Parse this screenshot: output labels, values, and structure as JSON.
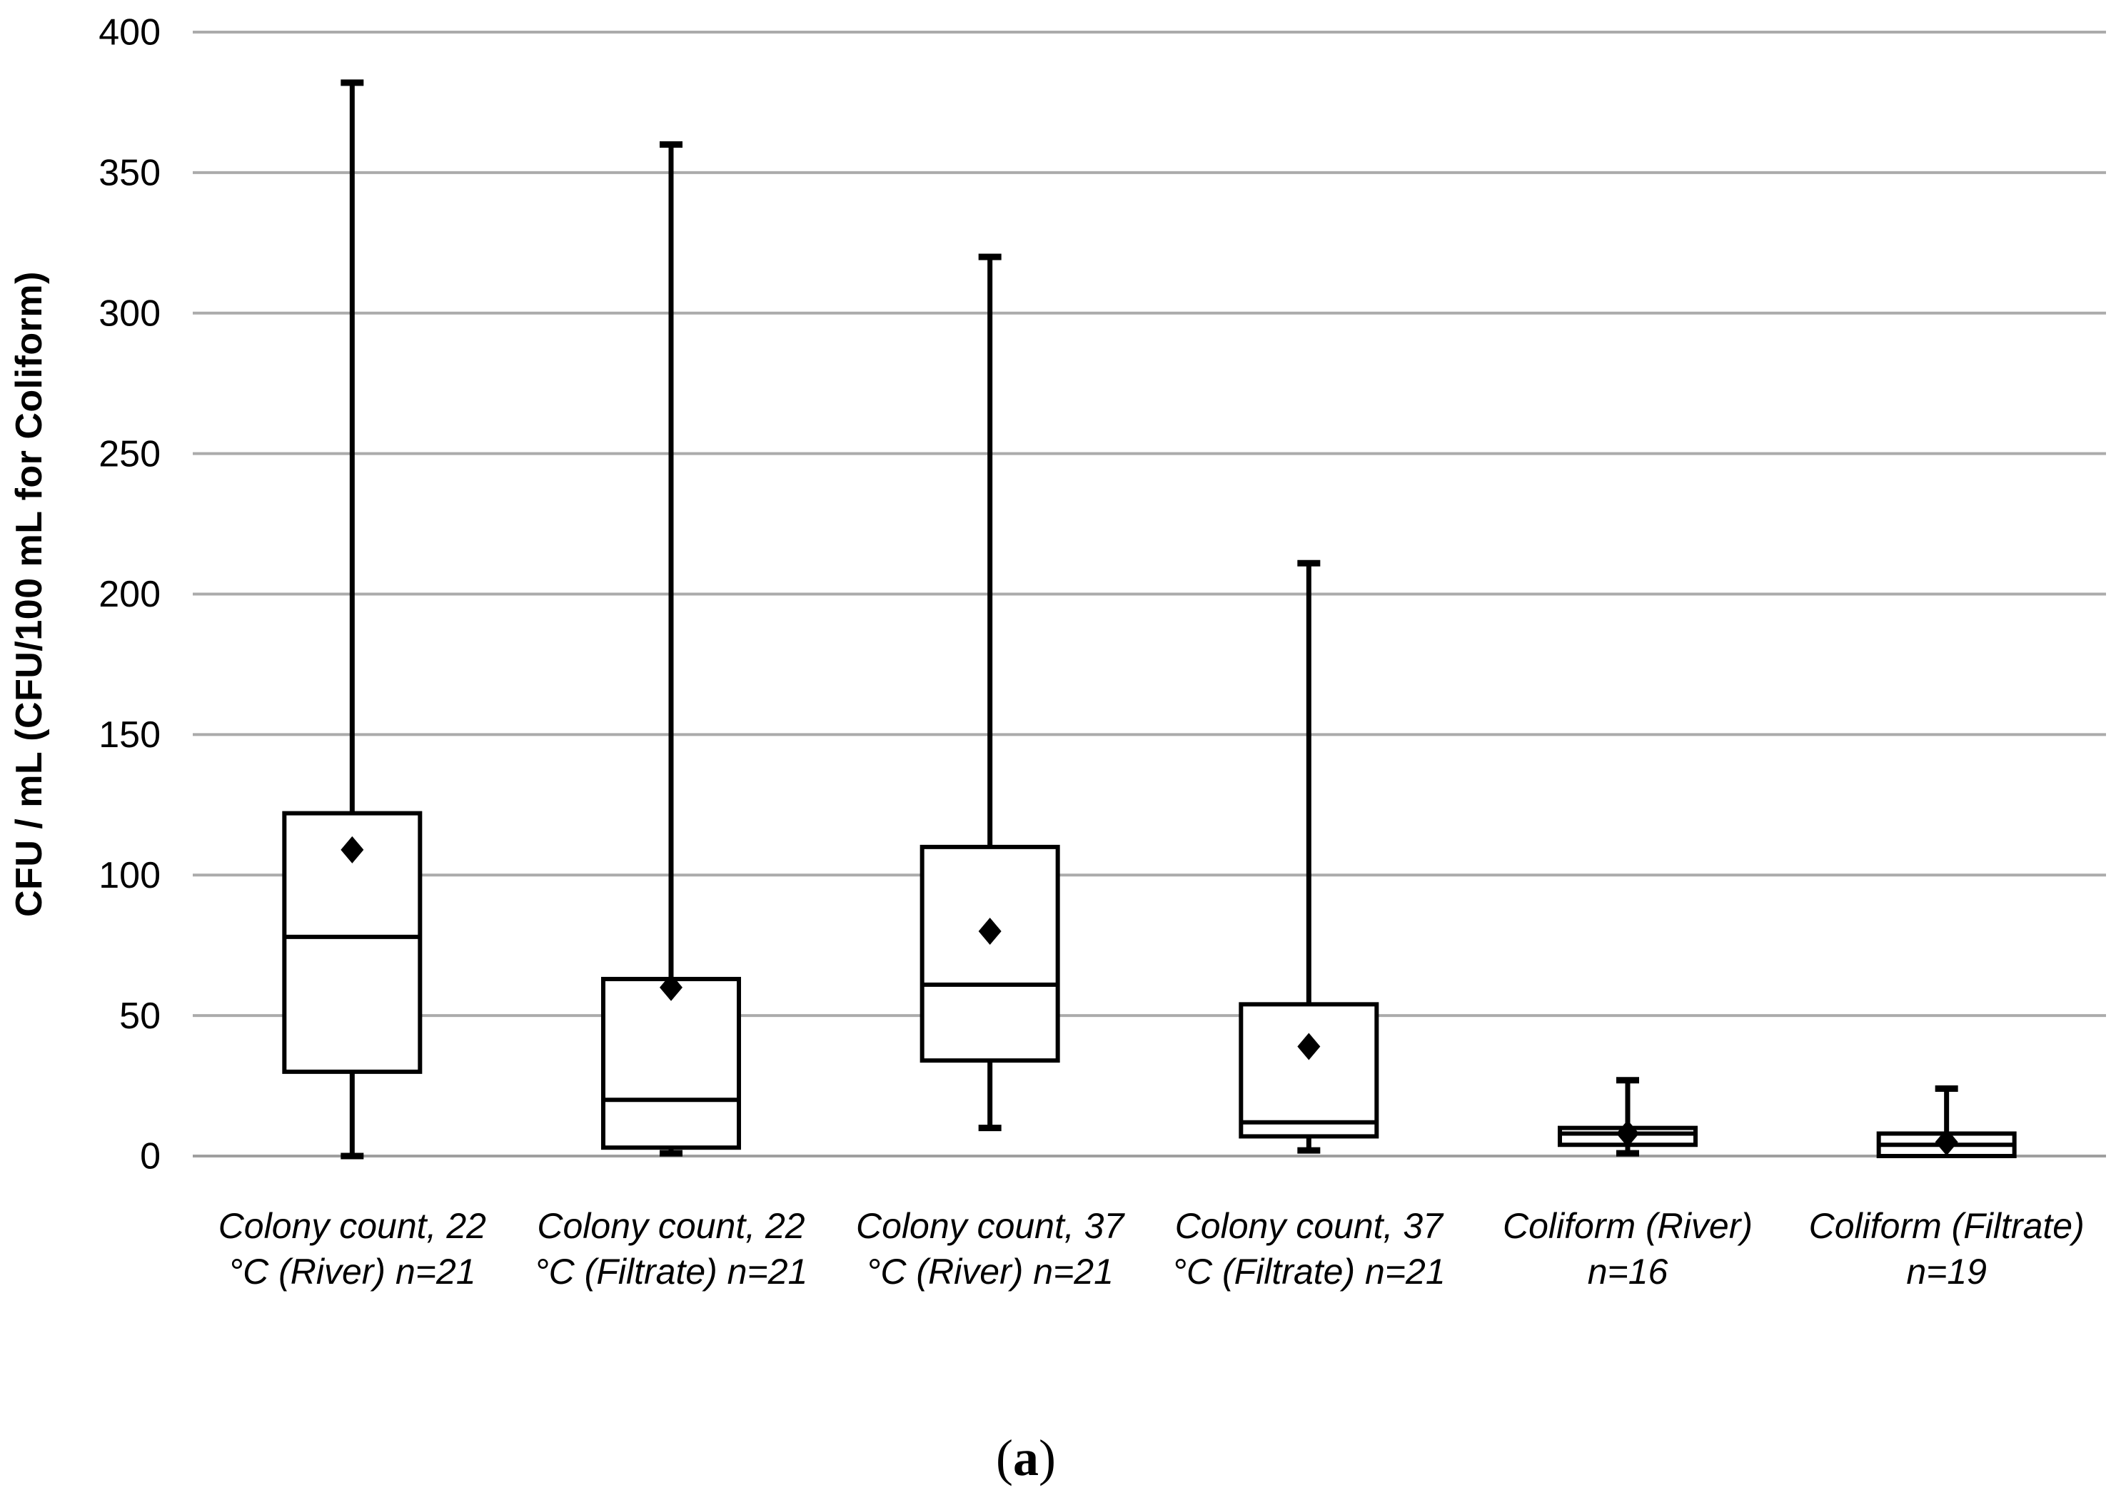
{
  "figure": {
    "caption_open": "(",
    "caption_letter": "a",
    "caption_close": ")"
  },
  "chart_data": {
    "type": "boxplot",
    "title": "",
    "xlabel": "",
    "ylabel": "CFU / mL (CFU/100 mL for Coliform)",
    "ylim": [
      0,
      400
    ],
    "yticks": [
      0,
      50,
      100,
      150,
      200,
      250,
      300,
      350,
      400
    ],
    "grid": true,
    "legend_position": "none",
    "categories": [
      "Colony count, 22 °C (River) n=21",
      "Colony count, 22 °C (Filtrate) n=21",
      "Colony count, 37 °C (River) n=21",
      "Colony count, 37 °C (Filtrate) n=21",
      "Coliform (River) n=16",
      "Coliform (Filtrate) n=19"
    ],
    "category_label_lines": [
      [
        "Colony count, 22",
        "°C (River) n=21"
      ],
      [
        "Colony count, 22",
        "°C (Filtrate) n=21"
      ],
      [
        "Colony count, 37",
        "°C (River) n=21"
      ],
      [
        "Colony count, 37",
        "°C (Filtrate) n=21"
      ],
      [
        "Coliform (River)",
        "n=16"
      ],
      [
        "Coliform (Filtrate)",
        "n=19"
      ]
    ],
    "series": [
      {
        "name": "Colony count, 22 °C (River)",
        "n": 21,
        "min": 0,
        "q1": 30,
        "median": 78,
        "q3": 122,
        "max": 382,
        "mean": 109
      },
      {
        "name": "Colony count, 22 °C (Filtrate)",
        "n": 21,
        "min": 1,
        "q1": 3,
        "median": 20,
        "q3": 63,
        "max": 360,
        "mean": 60
      },
      {
        "name": "Colony count, 37 °C (River)",
        "n": 21,
        "min": 10,
        "q1": 34,
        "median": 61,
        "q3": 110,
        "max": 320,
        "mean": 80
      },
      {
        "name": "Colony count, 37 °C (Filtrate)",
        "n": 21,
        "min": 2,
        "q1": 7,
        "median": 12,
        "q3": 54,
        "max": 211,
        "mean": 39
      },
      {
        "name": "Coliform (River)",
        "n": 16,
        "min": 1,
        "q1": 4,
        "median": 8,
        "q3": 10,
        "max": 27,
        "mean": 8
      },
      {
        "name": "Coliform (Filtrate)",
        "n": 19,
        "min": 0,
        "q1": 0,
        "median": 4,
        "q3": 8,
        "max": 24,
        "mean": 5
      }
    ],
    "colors": {
      "stroke": "#000000",
      "gridline": "#ababab",
      "axisline": "#9f9f9f",
      "text": "#000000"
    }
  }
}
